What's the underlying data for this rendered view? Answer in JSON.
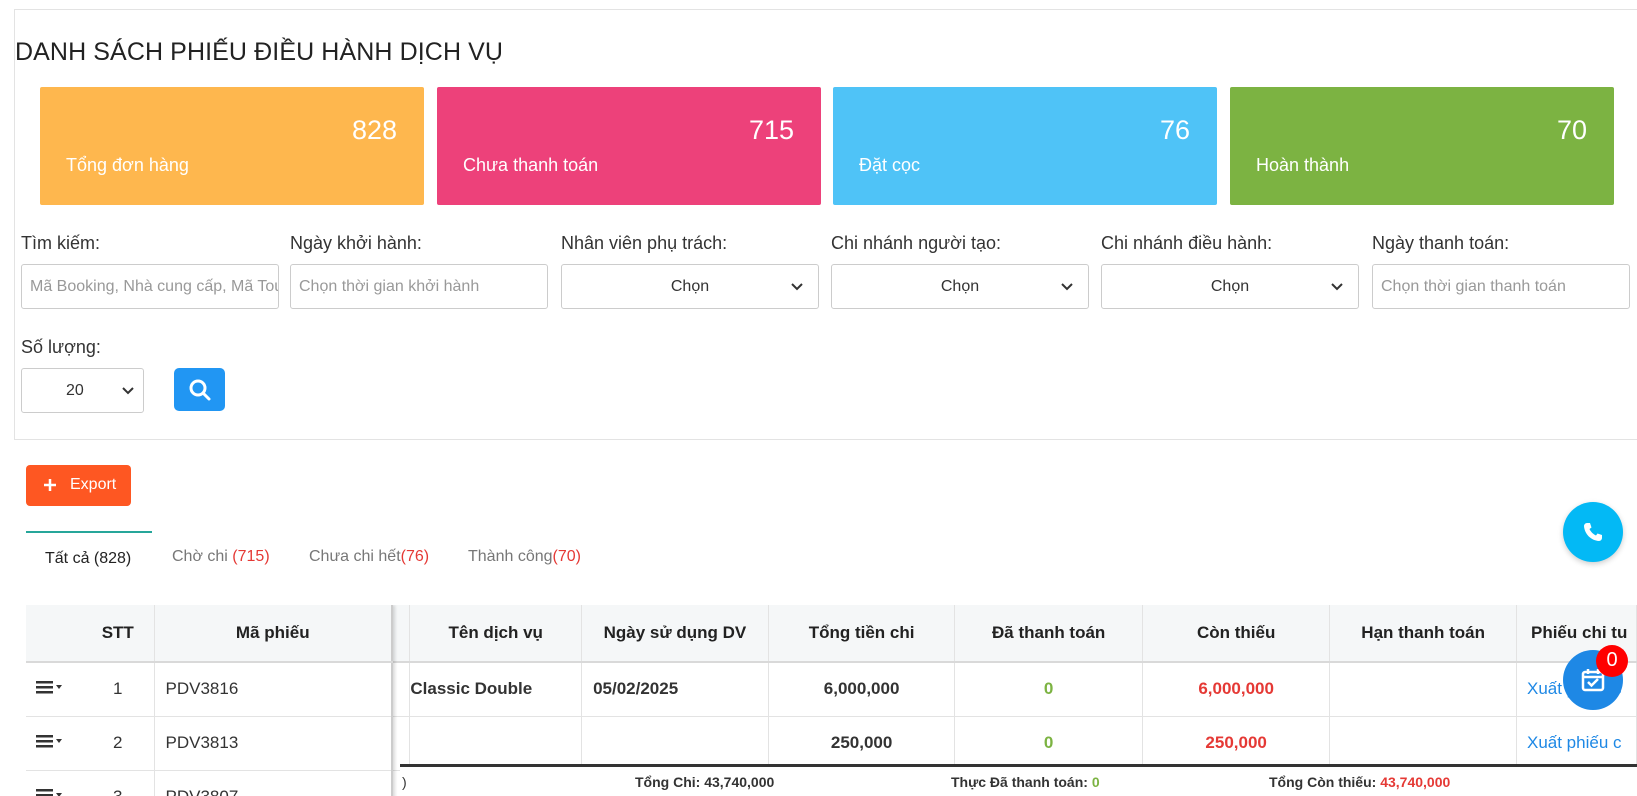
{
  "page": {
    "title": "DANH SÁCH PHIẾU ĐIỀU HÀNH DỊCH VỤ"
  },
  "stats": [
    {
      "value": "828",
      "label": "Tổng đơn hàng",
      "color": "#feb74e"
    },
    {
      "value": "715",
      "label": "Chưa thanh toán",
      "color": "#ed417a"
    },
    {
      "value": "76",
      "label": "Đặt cọc",
      "color": "#4fc3f7"
    },
    {
      "value": "70",
      "label": "Hoàn thành",
      "color": "#7cb342"
    }
  ],
  "filters": {
    "search": {
      "label": "Tìm kiếm:",
      "placeholder": "Mã Booking, Nhà cung cấp, Mã Tour"
    },
    "departure": {
      "label": "Ngày khởi hành:",
      "placeholder": "Chọn thời gian khởi hành"
    },
    "staff": {
      "label": "Nhân viên phụ trách:",
      "value": "Chọn"
    },
    "creator_branch": {
      "label": "Chi nhánh người tạo:",
      "value": "Chọn"
    },
    "operating_branch": {
      "label": "Chi nhánh điều hành:",
      "value": "Chọn"
    },
    "payment_date": {
      "label": "Ngày thanh toán:",
      "placeholder": "Chọn thời gian thanh toán"
    },
    "quantity": {
      "label": "Số lượng:",
      "value": "20"
    }
  },
  "export_label": "Export",
  "tabs": [
    {
      "label": "Tất cả ",
      "count": "(828)"
    },
    {
      "label": "Chờ chi ",
      "count": "(715)"
    },
    {
      "label": "Chưa chi hết",
      "count": "(76)"
    },
    {
      "label": "Thành công",
      "count": "(70)"
    }
  ],
  "table": {
    "headers": {
      "stt": "STT",
      "code": "Mã phiếu",
      "service": "Tên dịch vụ",
      "use_date": "Ngày sử dụng DV",
      "total": "Tổng tiền chi",
      "paid": "Đã thanh toán",
      "remaining": "Còn thiếu",
      "deadline": "Hạn thanh toán",
      "voucher": "Phiếu chi tu"
    },
    "rows": [
      {
        "stt": "1",
        "code": "PDV3816",
        "service": "Classic Double",
        "use_date": "05/02/2025",
        "total": "6,000,000",
        "paid": "0",
        "remaining": "6,000,000",
        "deadline": "",
        "voucher": "Xuất phiếu c"
      },
      {
        "stt": "2",
        "code": "PDV3813",
        "service": "",
        "use_date": "",
        "total": "250,000",
        "paid": "0",
        "remaining": "250,000",
        "deadline": "",
        "voucher": "Xuất phiếu c"
      },
      {
        "stt": "3",
        "code": "PDV3807",
        "service": "",
        "use_date": "",
        "total": "",
        "paid": "",
        "remaining": "",
        "deadline": "",
        "voucher": ""
      }
    ]
  },
  "totals": {
    "paren": ")",
    "total_label": "Tổng Chi: ",
    "total_value": "43,740,000",
    "paid_label": "Thực Đã thanh toán: ",
    "paid_value": "0",
    "remaining_label": "Tổng Còn thiếu: ",
    "remaining_value": "43,740,000"
  },
  "notification_count": "0",
  "icons": [
    "search-icon",
    "plus-icon",
    "chevron-down-icon",
    "menu-icon",
    "phone-icon",
    "calendar-check-icon"
  ]
}
